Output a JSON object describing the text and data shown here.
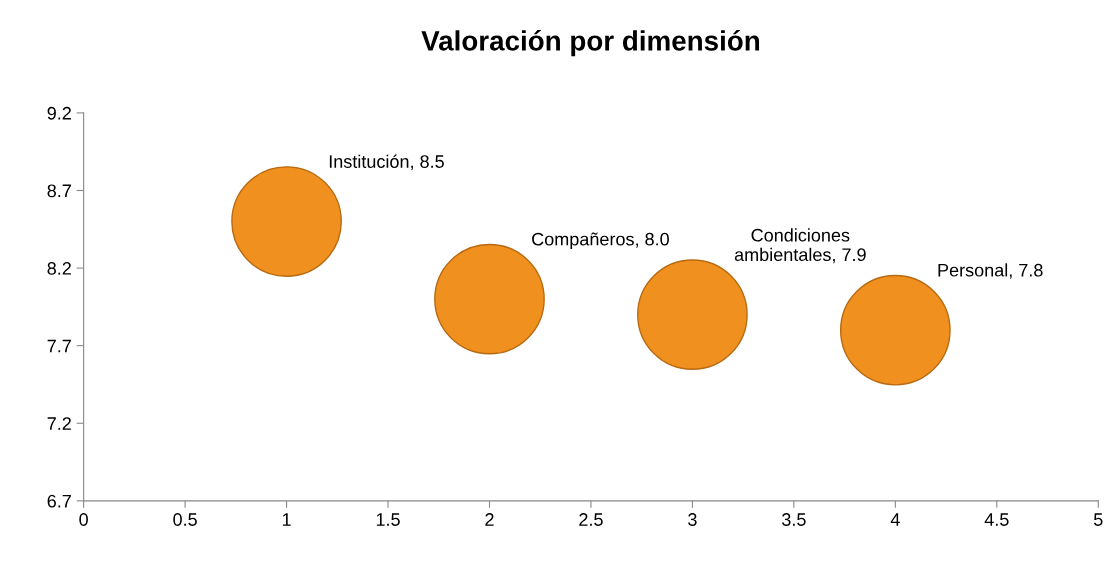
{
  "chart_data": {
    "type": "bubble",
    "title": "Valoración por dimensión",
    "x": [
      1,
      2,
      3,
      4
    ],
    "values": [
      8.5,
      8.0,
      7.9,
      7.8
    ],
    "sizes": [
      1,
      1,
      1,
      1
    ],
    "color": "#f0901e",
    "value_labels": [
      "Institución, 8.5",
      "Compañeros, 8.0",
      "Condiciones\nambientales, 7.9",
      "Personal, 7.8"
    ],
    "xlim": [
      0,
      5
    ],
    "xticks": [
      0,
      0.5,
      1,
      1.5,
      2,
      2.5,
      3,
      3.5,
      4,
      4.5,
      5
    ],
    "ylim": [
      6.7,
      9.2
    ],
    "yticks": [
      6.7,
      7.2,
      7.7,
      8.2,
      8.7,
      9.2
    ],
    "grid": false,
    "legend": false
  }
}
